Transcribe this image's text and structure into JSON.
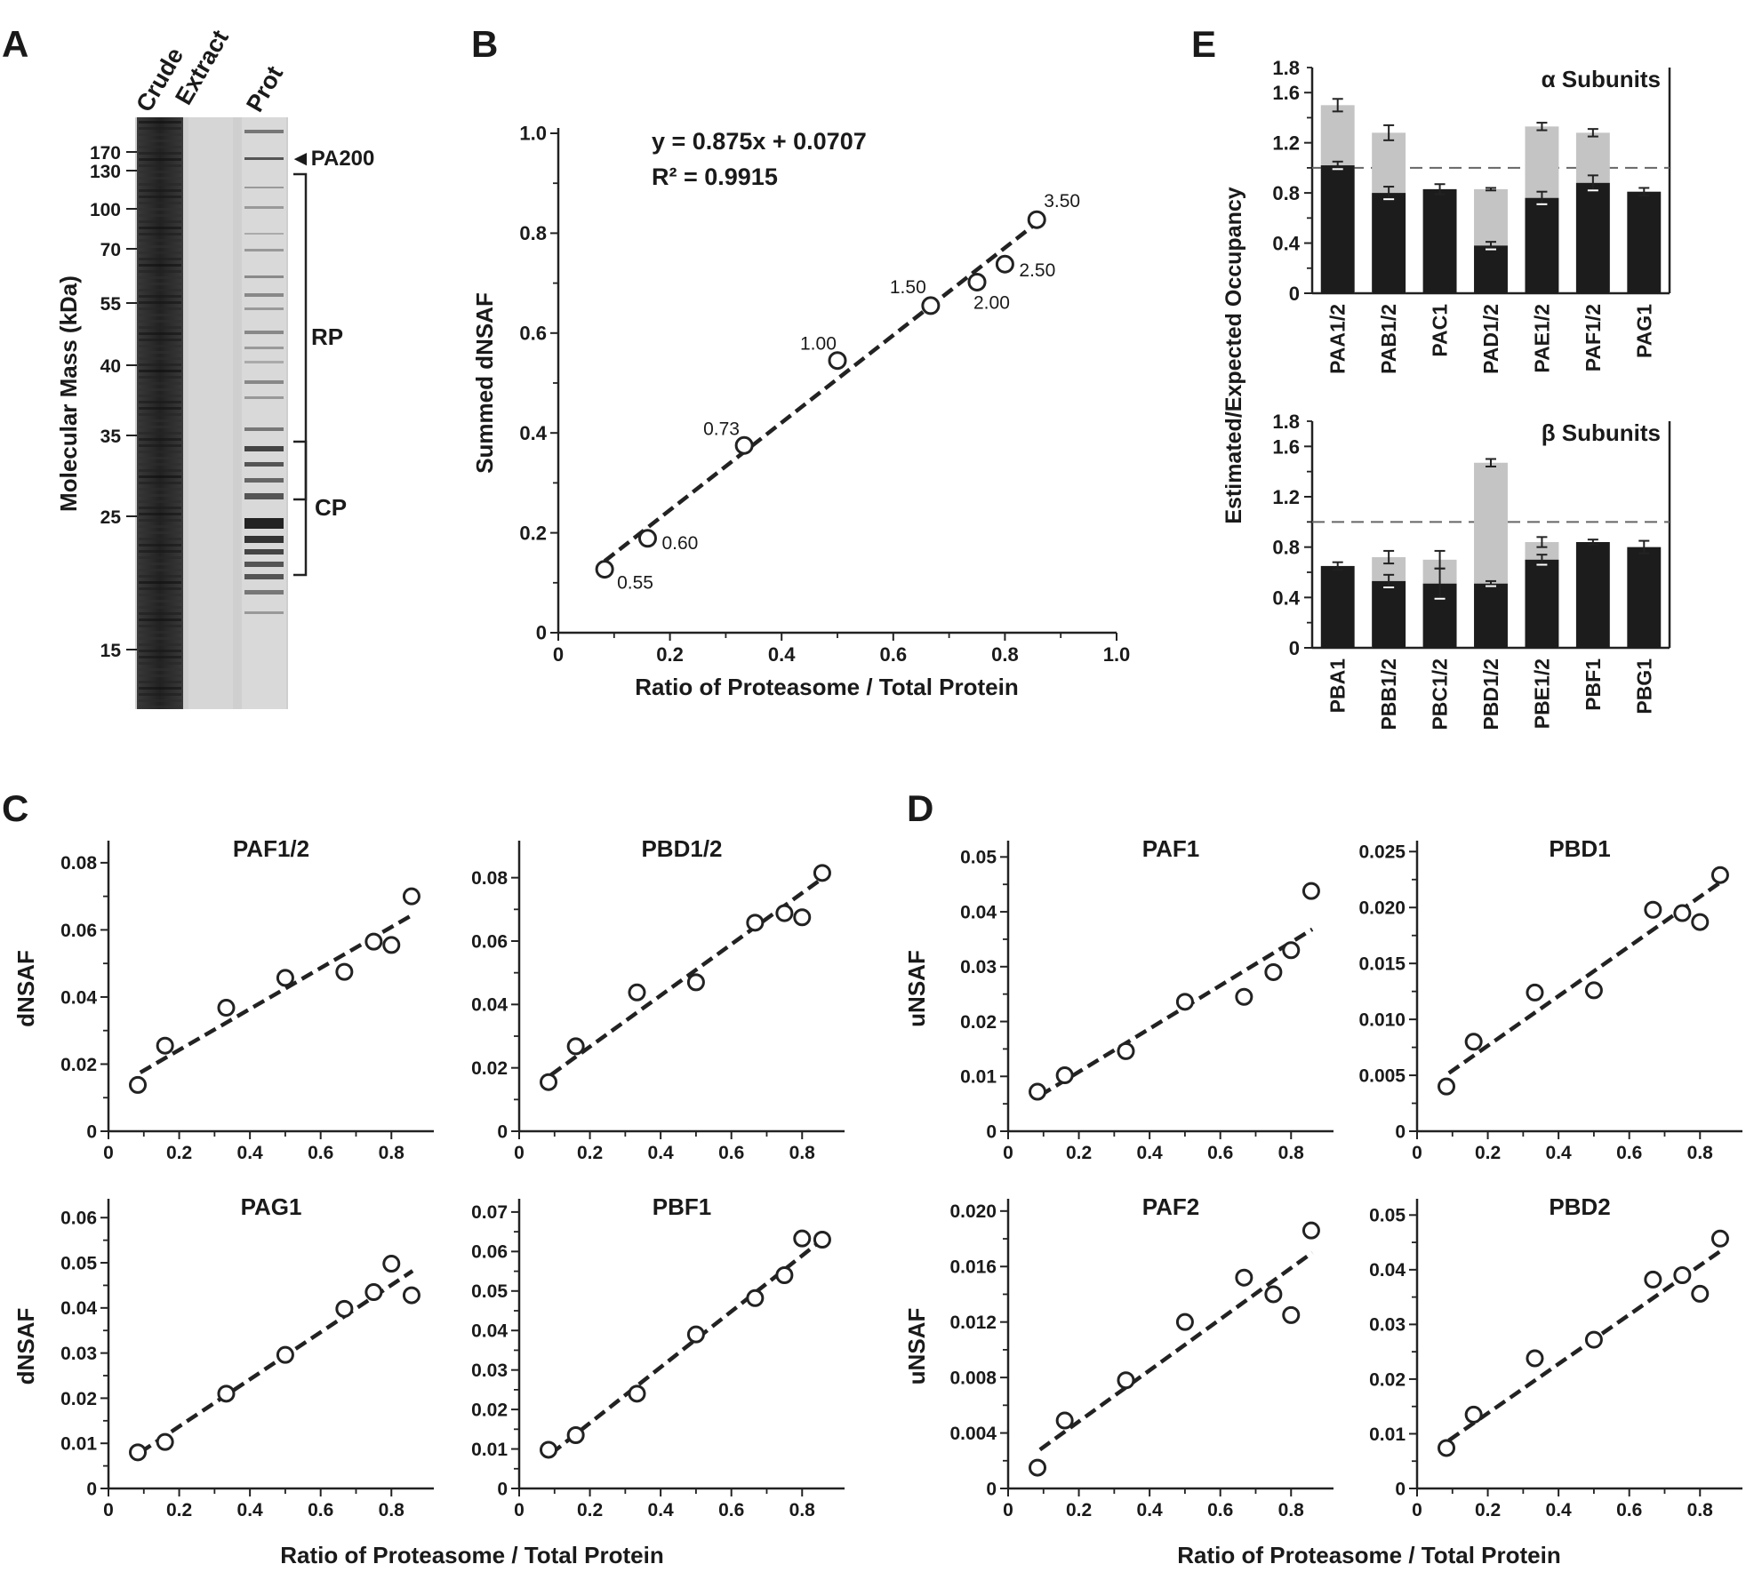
{
  "panel_letters": [
    "A",
    "B",
    "C",
    "D",
    "E"
  ],
  "gel": {
    "lane_labels": [
      "Crude",
      "Extract",
      "Prot"
    ],
    "ylabel": "Molecular Mass (kDa)",
    "ticks": [
      {
        "label": "170",
        "kda": 170
      },
      {
        "label": "130",
        "kda": 130
      },
      {
        "label": "100",
        "kda": 100
      },
      {
        "label": "70",
        "kda": 70
      },
      {
        "label": "55",
        "kda": 55
      },
      {
        "label": "40",
        "kda": 40
      },
      {
        "label": "35",
        "kda": 35
      },
      {
        "label": "25",
        "kda": 25
      },
      {
        "label": "15",
        "kda": 15
      }
    ],
    "annotations": {
      "pa200": "◄PA200",
      "rp": "RP",
      "cp": "CP"
    }
  },
  "chart_data": [
    {
      "panel": "B",
      "type": "scatter",
      "xlabel": "Ratio of Proteasome / Total Protein",
      "ylabel": "Summed dNSAF",
      "xlim": [
        0,
        1.0
      ],
      "ylim": [
        0,
        1.0
      ],
      "xticks": [
        "0",
        "0.2",
        "0.4",
        "0.6",
        "0.8",
        "1.0"
      ],
      "yticks": [
        "0",
        "0.2",
        "0.4",
        "0.6",
        "0.8",
        "1.0"
      ],
      "equation": "y = 0.875x + 0.0707",
      "r2": "R² = 0.9915",
      "points": [
        {
          "x": 0.083,
          "y": 0.127,
          "label": "0.55"
        },
        {
          "x": 0.16,
          "y": 0.189,
          "label": "0.60"
        },
        {
          "x": 0.333,
          "y": 0.375,
          "label": "0.73"
        },
        {
          "x": 0.5,
          "y": 0.545,
          "label": "1.00"
        },
        {
          "x": 0.667,
          "y": 0.655,
          "label": "1.50"
        },
        {
          "x": 0.75,
          "y": 0.702,
          "label": "2.00"
        },
        {
          "x": 0.8,
          "y": 0.738,
          "label": "2.50"
        },
        {
          "x": 0.857,
          "y": 0.827,
          "label": "3.50"
        }
      ],
      "fit": {
        "slope": 0.875,
        "intercept": 0.0707,
        "x_range": [
          0.083,
          0.857
        ]
      }
    },
    {
      "panel": "C",
      "type": "scatter",
      "title": "PAF1/2",
      "ylabel": "dNSAF",
      "xlim": [
        0,
        0.92
      ],
      "xticks": [
        "0",
        "0.2",
        "0.4",
        "0.6",
        "0.8"
      ],
      "ylim": [
        0,
        0.085
      ],
      "yticks": [
        "0",
        "0.02",
        "0.04",
        "0.06",
        "0.08"
      ],
      "points": [
        [
          0.083,
          0.0138
        ],
        [
          0.16,
          0.0255
        ],
        [
          0.333,
          0.0368
        ],
        [
          0.5,
          0.0457
        ],
        [
          0.667,
          0.0475
        ],
        [
          0.75,
          0.0565
        ],
        [
          0.8,
          0.0555
        ],
        [
          0.857,
          0.07
        ]
      ],
      "fit": [
        [
          0.09,
          0.0175
        ],
        [
          0.86,
          0.0645
        ]
      ]
    },
    {
      "panel": "C",
      "type": "scatter",
      "title": "PBD1/2",
      "xlim": [
        0,
        0.92
      ],
      "xticks": [
        "0",
        "0.2",
        "0.4",
        "0.6",
        "0.8"
      ],
      "ylim": [
        0,
        0.09
      ],
      "yticks": [
        "0",
        "0.02",
        "0.04",
        "0.06",
        "0.08"
      ],
      "points": [
        [
          0.083,
          0.0155
        ],
        [
          0.16,
          0.0268
        ],
        [
          0.333,
          0.0438
        ],
        [
          0.5,
          0.047
        ],
        [
          0.667,
          0.0658
        ],
        [
          0.75,
          0.0688
        ],
        [
          0.8,
          0.0675
        ],
        [
          0.857,
          0.0815
        ]
      ],
      "fit": [
        [
          0.09,
          0.0178
        ],
        [
          0.86,
          0.08
        ]
      ]
    },
    {
      "panel": "C",
      "type": "scatter",
      "title": "PAG1",
      "ylabel": "dNSAF",
      "xlim": [
        0,
        0.92
      ],
      "xticks": [
        "0",
        "0.2",
        "0.4",
        "0.6",
        "0.8"
      ],
      "ylim": [
        0,
        0.063
      ],
      "yticks": [
        "0",
        "0.01",
        "0.02",
        "0.03",
        "0.04",
        "0.05",
        "0.06"
      ],
      "points": [
        [
          0.083,
          0.008
        ],
        [
          0.16,
          0.0103
        ],
        [
          0.333,
          0.021
        ],
        [
          0.5,
          0.0296
        ],
        [
          0.667,
          0.0398
        ],
        [
          0.75,
          0.0435
        ],
        [
          0.8,
          0.0498
        ],
        [
          0.857,
          0.0428
        ]
      ],
      "fit": [
        [
          0.09,
          0.008
        ],
        [
          0.86,
          0.0482
        ]
      ]
    },
    {
      "panel": "C",
      "type": "scatter",
      "title": "PBF1",
      "xlim": [
        0,
        0.92
      ],
      "xticks": [
        "0",
        "0.2",
        "0.4",
        "0.6",
        "0.8"
      ],
      "ylim": [
        0,
        0.072
      ],
      "yticks": [
        "0",
        "0.01",
        "0.02",
        "0.03",
        "0.04",
        "0.05",
        "0.06",
        "0.07"
      ],
      "points": [
        [
          0.083,
          0.0098
        ],
        [
          0.16,
          0.0135
        ],
        [
          0.333,
          0.024
        ],
        [
          0.5,
          0.039
        ],
        [
          0.667,
          0.0482
        ],
        [
          0.75,
          0.054
        ],
        [
          0.8,
          0.0633
        ],
        [
          0.857,
          0.063
        ]
      ],
      "fit": [
        [
          0.09,
          0.0088
        ],
        [
          0.86,
          0.0632
        ]
      ]
    },
    {
      "panel": "D",
      "type": "scatter",
      "title": "PAF1",
      "ylabel": "uNSAF",
      "xlim": [
        0,
        0.92
      ],
      "xticks": [
        "0",
        "0.2",
        "0.4",
        "0.6",
        "0.8"
      ],
      "ylim": [
        0,
        0.052
      ],
      "yticks": [
        "0",
        "0.01",
        "0.02",
        "0.03",
        "0.04",
        "0.05"
      ],
      "points": [
        [
          0.083,
          0.0072
        ],
        [
          0.16,
          0.0102
        ],
        [
          0.333,
          0.0146
        ],
        [
          0.5,
          0.0236
        ],
        [
          0.667,
          0.0245
        ],
        [
          0.75,
          0.029
        ],
        [
          0.8,
          0.033
        ],
        [
          0.857,
          0.0438
        ]
      ],
      "fit": [
        [
          0.09,
          0.0065
        ],
        [
          0.86,
          0.0368
        ]
      ]
    },
    {
      "panel": "D",
      "type": "scatter",
      "title": "PBD1",
      "xlim": [
        0,
        0.92
      ],
      "xticks": [
        "0",
        "0.2",
        "0.4",
        "0.6",
        "0.8"
      ],
      "ylim": [
        0,
        0.0255
      ],
      "yticks": [
        "0",
        "0.005",
        "0.010",
        "0.015",
        "0.020",
        "0.025"
      ],
      "points": [
        [
          0.083,
          0.004
        ],
        [
          0.16,
          0.008
        ],
        [
          0.333,
          0.0124
        ],
        [
          0.5,
          0.0126
        ],
        [
          0.667,
          0.0198
        ],
        [
          0.75,
          0.0195
        ],
        [
          0.8,
          0.0187
        ],
        [
          0.857,
          0.0229
        ]
      ],
      "fit": [
        [
          0.09,
          0.0052
        ],
        [
          0.86,
          0.0223
        ]
      ]
    },
    {
      "panel": "D",
      "type": "scatter",
      "title": "PAF2",
      "ylabel": "uNSAF",
      "xlim": [
        0,
        0.92
      ],
      "xticks": [
        "0",
        "0.2",
        "0.4",
        "0.6",
        "0.8"
      ],
      "ylim": [
        0,
        0.0205
      ],
      "yticks": [
        "0",
        "0.004",
        "0.008",
        "0.012",
        "0.016",
        "0.020"
      ],
      "points": [
        [
          0.083,
          0.0015
        ],
        [
          0.16,
          0.0049
        ],
        [
          0.333,
          0.0078
        ],
        [
          0.5,
          0.012
        ],
        [
          0.667,
          0.0152
        ],
        [
          0.75,
          0.014
        ],
        [
          0.8,
          0.0125
        ],
        [
          0.857,
          0.0186
        ]
      ],
      "fit": [
        [
          0.09,
          0.0028
        ],
        [
          0.86,
          0.017
        ]
      ]
    },
    {
      "panel": "D",
      "type": "scatter",
      "title": "PBD2",
      "xlim": [
        0,
        0.92
      ],
      "xticks": [
        "0",
        "0.2",
        "0.4",
        "0.6",
        "0.8"
      ],
      "ylim": [
        0,
        0.052
      ],
      "yticks": [
        "0",
        "0.01",
        "0.02",
        "0.03",
        "0.04",
        "0.05"
      ],
      "points": [
        [
          0.083,
          0.0074
        ],
        [
          0.16,
          0.0135
        ],
        [
          0.333,
          0.0238
        ],
        [
          0.5,
          0.0272
        ],
        [
          0.667,
          0.0382
        ],
        [
          0.75,
          0.039
        ],
        [
          0.8,
          0.0356
        ],
        [
          0.857,
          0.0457
        ]
      ],
      "fit": [
        [
          0.09,
          0.0088
        ],
        [
          0.86,
          0.0435
        ]
      ]
    },
    {
      "panel": "E",
      "type": "bar",
      "stacked": true,
      "title": "α Subunits",
      "ylabel": "Estimated/Expected Occupancy",
      "ylim": [
        0,
        1.8
      ],
      "yticks": [
        "0",
        "0.4",
        "0.8",
        "1.2",
        "1.6"
      ],
      "minor_yticks": [
        0.2,
        0.6,
        1.0,
        1.4,
        1.8
      ],
      "top_label": "1.8",
      "reference_line": 1.0,
      "categories": [
        "PAA1/2",
        "PAB1/2",
        "PAC1",
        "PAD1/2",
        "PAE1/2",
        "PAF1/2",
        "PAG1"
      ],
      "dark_values": [
        1.02,
        0.8,
        0.83,
        0.38,
        0.76,
        0.88,
        0.81
      ],
      "dark_err": [
        0.03,
        0.05,
        0.04,
        0.03,
        0.05,
        0.06,
        0.03
      ],
      "total_values": [
        1.5,
        1.28,
        null,
        0.83,
        1.33,
        1.28,
        null
      ],
      "total_err": [
        0.05,
        0.06,
        null,
        0.01,
        0.03,
        0.03,
        null
      ]
    },
    {
      "panel": "E",
      "type": "bar",
      "stacked": true,
      "title": "β Subunits",
      "ylim": [
        0,
        1.8
      ],
      "yticks": [
        "0",
        "0.4",
        "0.8",
        "1.2",
        "1.6"
      ],
      "minor_yticks": [
        0.2,
        0.6,
        1.0,
        1.4,
        1.8
      ],
      "top_label": "1.8",
      "reference_line": 1.0,
      "categories": [
        "PBA1",
        "PBB1/2",
        "PBC1/2",
        "PBD1/2",
        "PBE1/2",
        "PBF1",
        "PBG1"
      ],
      "dark_values": [
        0.65,
        0.53,
        0.51,
        0.51,
        0.7,
        0.84,
        0.8
      ],
      "dark_err": [
        0.03,
        0.05,
        0.12,
        0.02,
        0.04,
        0.02,
        0.05
      ],
      "total_values": [
        null,
        0.72,
        0.7,
        1.47,
        0.84,
        null,
        null
      ],
      "total_err": [
        null,
        0.05,
        0.07,
        0.03,
        0.04,
        null,
        null
      ]
    }
  ],
  "shared_xlabel": "Ratio of Proteasome / Total Protein"
}
